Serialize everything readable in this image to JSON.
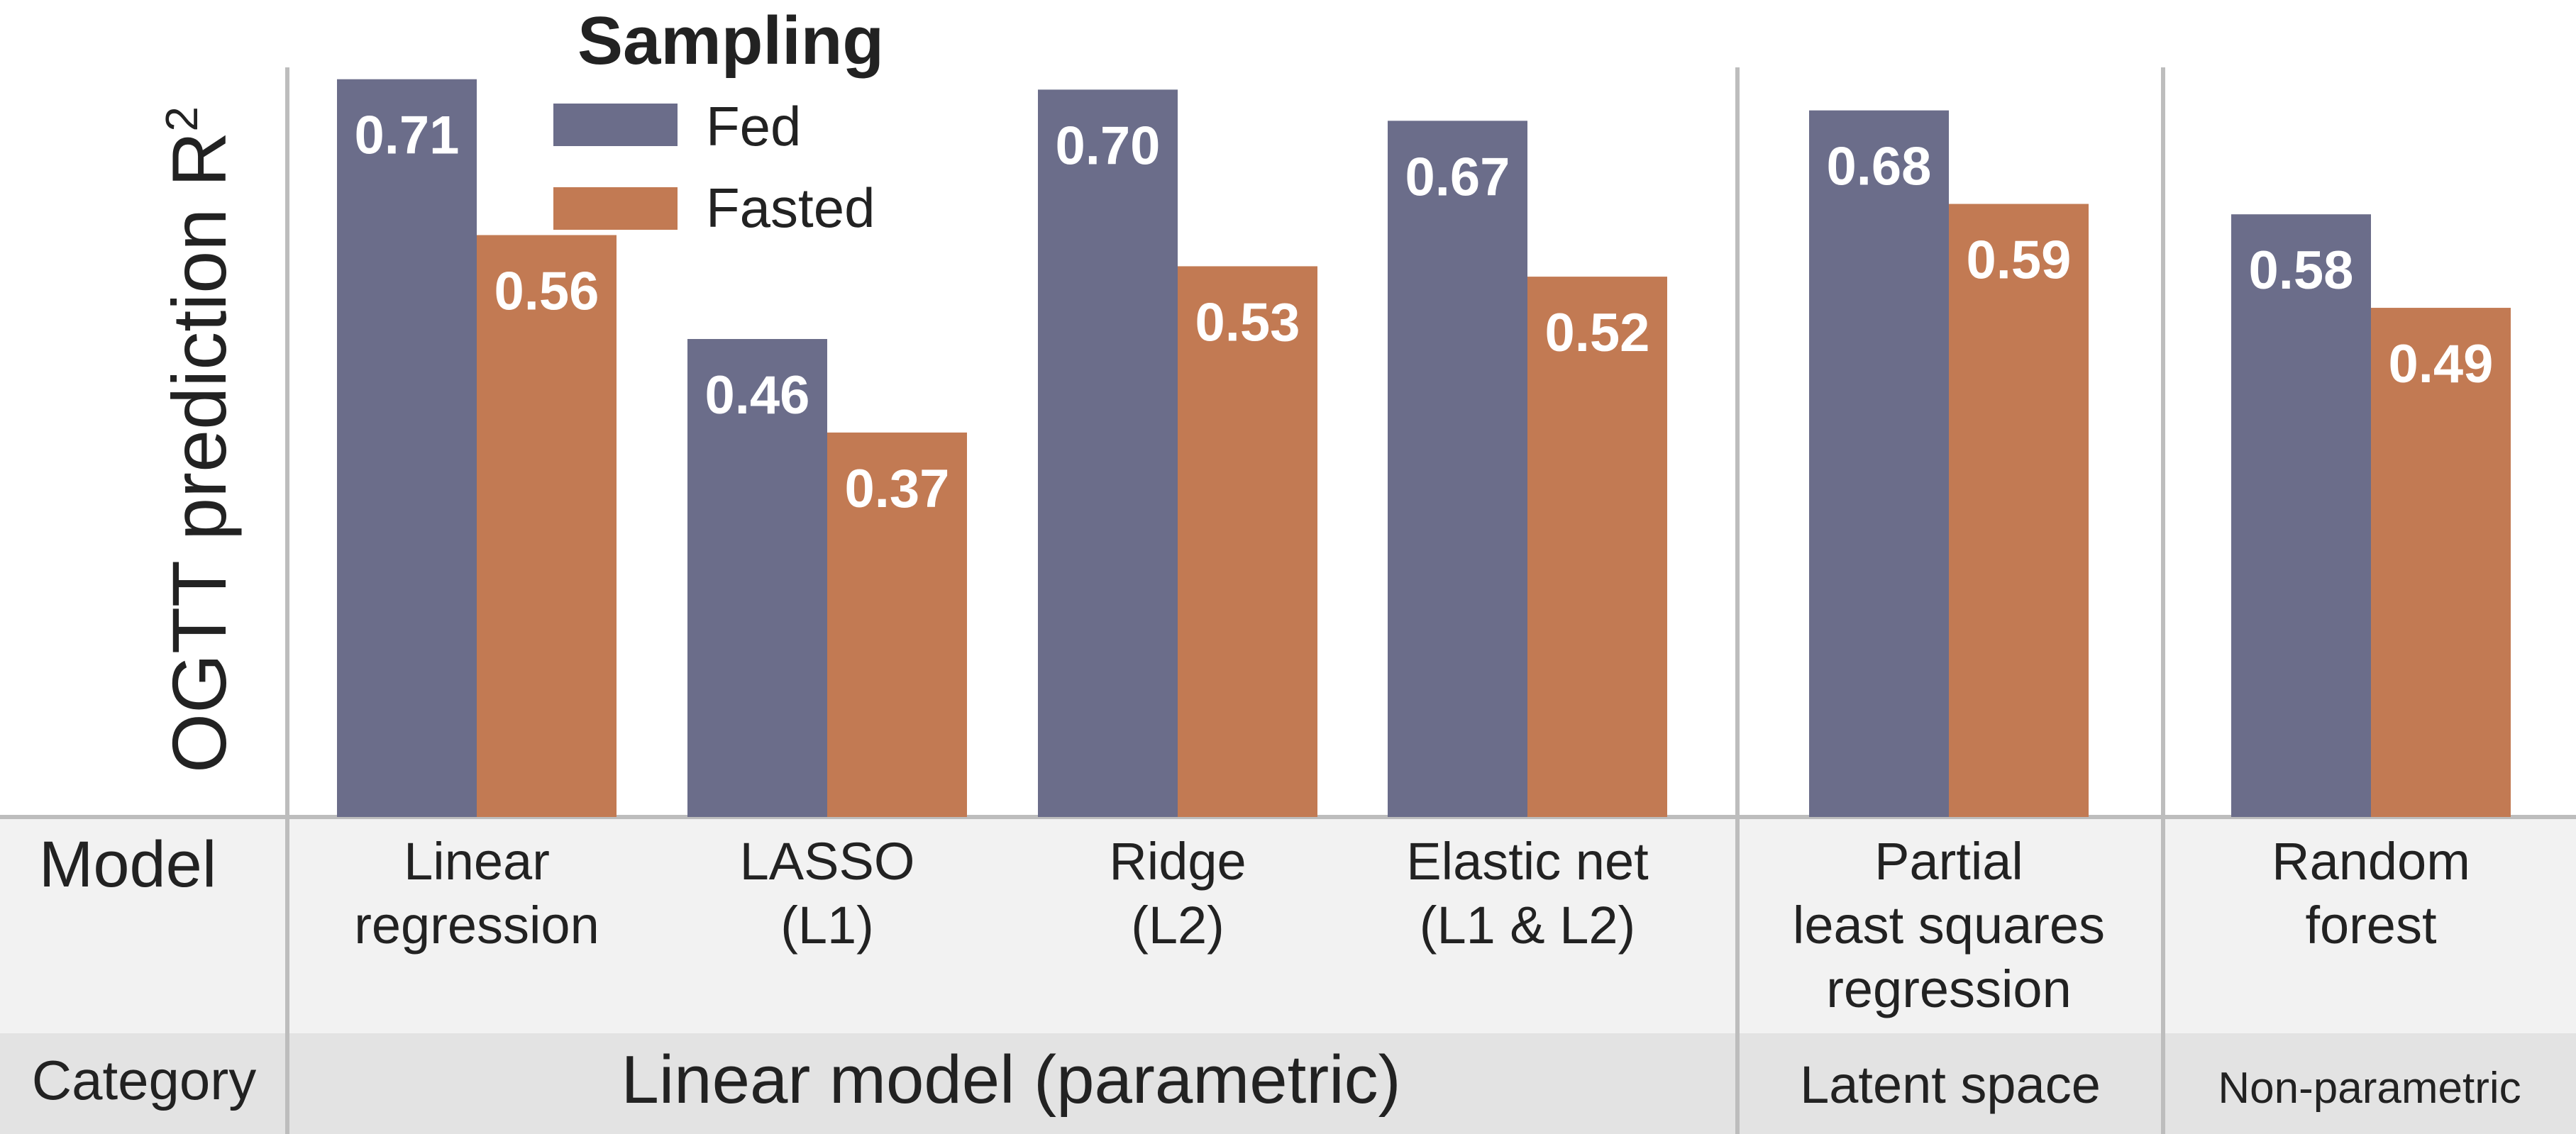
{
  "chart_data": {
    "type": "bar",
    "ylabel": "OGTT prediction R",
    "ylabel_superscript": "2",
    "ylim": [
      0,
      0.8
    ],
    "legend": {
      "title": "Sampling",
      "placement": "top-left"
    },
    "categories": [
      "Linear regression",
      "LASSO (L1)",
      "Ridge (L2)",
      "Elastic net (L1 & L2)",
      "Partial least squares regression",
      "Random forest"
    ],
    "category_lines": [
      [
        "Linear",
        "regression"
      ],
      [
        "LASSO",
        "(L1)"
      ],
      [
        "Ridge",
        "(L2)"
      ],
      [
        "Elastic net",
        "(L1 & L2)"
      ],
      [
        "Partial",
        "least squares",
        "regression"
      ],
      [
        "Random",
        "forest"
      ]
    ],
    "series": [
      {
        "name": "Fed",
        "color": "#6b6d8a",
        "values": [
          0.71,
          0.46,
          0.7,
          0.67,
          0.68,
          0.58
        ],
        "labels": [
          "0.71",
          "0.46",
          "0.70",
          "0.67",
          "0.68",
          "0.58"
        ]
      },
      {
        "name": "Fasted",
        "color": "#c27a53",
        "values": [
          0.56,
          0.37,
          0.53,
          0.52,
          0.59,
          0.49
        ],
        "labels": [
          "0.56",
          "0.37",
          "0.53",
          "0.52",
          "0.59",
          "0.49"
        ]
      }
    ],
    "row_labels": {
      "model": "Model",
      "category": "Category"
    },
    "groups": [
      {
        "label": "Linear model (parametric)",
        "members": [
          0,
          1,
          2,
          3
        ]
      },
      {
        "label": "Latent space",
        "members": [
          4
        ]
      },
      {
        "label": "Non-parametric",
        "members": [
          5
        ]
      }
    ]
  }
}
